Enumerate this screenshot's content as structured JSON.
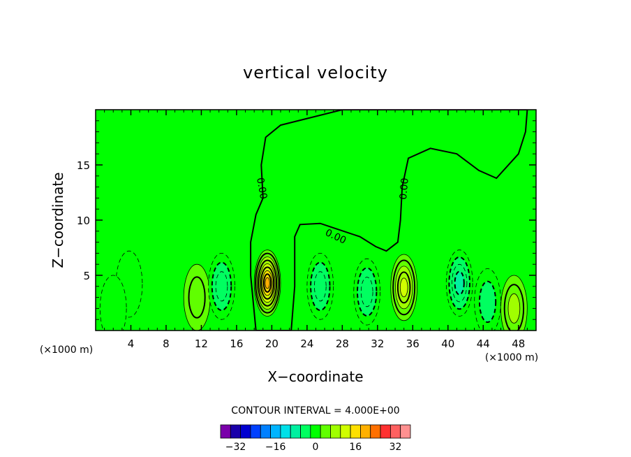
{
  "chart_data": {
    "type": "heatmap",
    "title": "vertical velocity",
    "xlabel": "X−coordinate",
    "ylabel": "Z−coordinate",
    "x_unit_left": "(×1000 m)",
    "x_unit_right": "(×1000 m)",
    "xlim": [
      0,
      50
    ],
    "ylim": [
      0,
      20
    ],
    "x_ticks": [
      4,
      8,
      12,
      16,
      20,
      24,
      28,
      32,
      36,
      40,
      44,
      48
    ],
    "x_tick_labels": [
      "4",
      "8",
      "12",
      "16",
      "20",
      "24",
      "28",
      "32",
      "36",
      "40",
      "44",
      "48"
    ],
    "y_ticks": [
      5,
      10,
      15
    ],
    "y_tick_labels": [
      "5",
      "10",
      "15"
    ],
    "contour_interval_text": "CONTOUR INTERVAL = 4.000E+00",
    "zero_contour_labels": [
      "0.00",
      "0.00",
      "0.00"
    ],
    "colorbar": {
      "colors": [
        "#7a00aa",
        "#1a00aa",
        "#0000d0",
        "#0040ff",
        "#0080ff",
        "#00b4ff",
        "#00e0e8",
        "#00f0a0",
        "#00ff60",
        "#00ff00",
        "#60ff00",
        "#a0ff00",
        "#d0ff00",
        "#ffe000",
        "#ffb000",
        "#ff7000",
        "#ff3030",
        "#ff6060",
        "#ff9090"
      ],
      "tick_values": [
        -32,
        -16,
        0,
        16,
        32
      ],
      "tick_labels": [
        "−32",
        "−16",
        "0",
        "16",
        "32"
      ],
      "min": -38,
      "max": 38
    },
    "features": [
      {
        "kind": "updraft",
        "x": 19.5,
        "z": 4.3,
        "peak": 18
      },
      {
        "kind": "updraft",
        "x": 35.0,
        "z": 3.9,
        "peak": 10
      },
      {
        "kind": "updraft",
        "x": 47.5,
        "z": 2.0,
        "peak": 6
      },
      {
        "kind": "updraft",
        "x": 11.5,
        "z": 3.0,
        "peak": 4
      },
      {
        "kind": "downdraft",
        "x": 14.3,
        "z": 4.0,
        "peak": -6
      },
      {
        "kind": "downdraft",
        "x": 25.5,
        "z": 4.0,
        "peak": -5
      },
      {
        "kind": "downdraft",
        "x": 30.8,
        "z": 3.5,
        "peak": -6
      },
      {
        "kind": "downdraft",
        "x": 41.3,
        "z": 4.3,
        "peak": -7
      },
      {
        "kind": "downdraft",
        "x": 44.5,
        "z": 2.6,
        "peak": -3
      },
      {
        "kind": "downdraft",
        "x": 3.8,
        "z": 4.2,
        "peak": -2
      },
      {
        "kind": "downdraft",
        "x": 2.0,
        "z": 2.0,
        "peak": -2
      }
    ]
  }
}
